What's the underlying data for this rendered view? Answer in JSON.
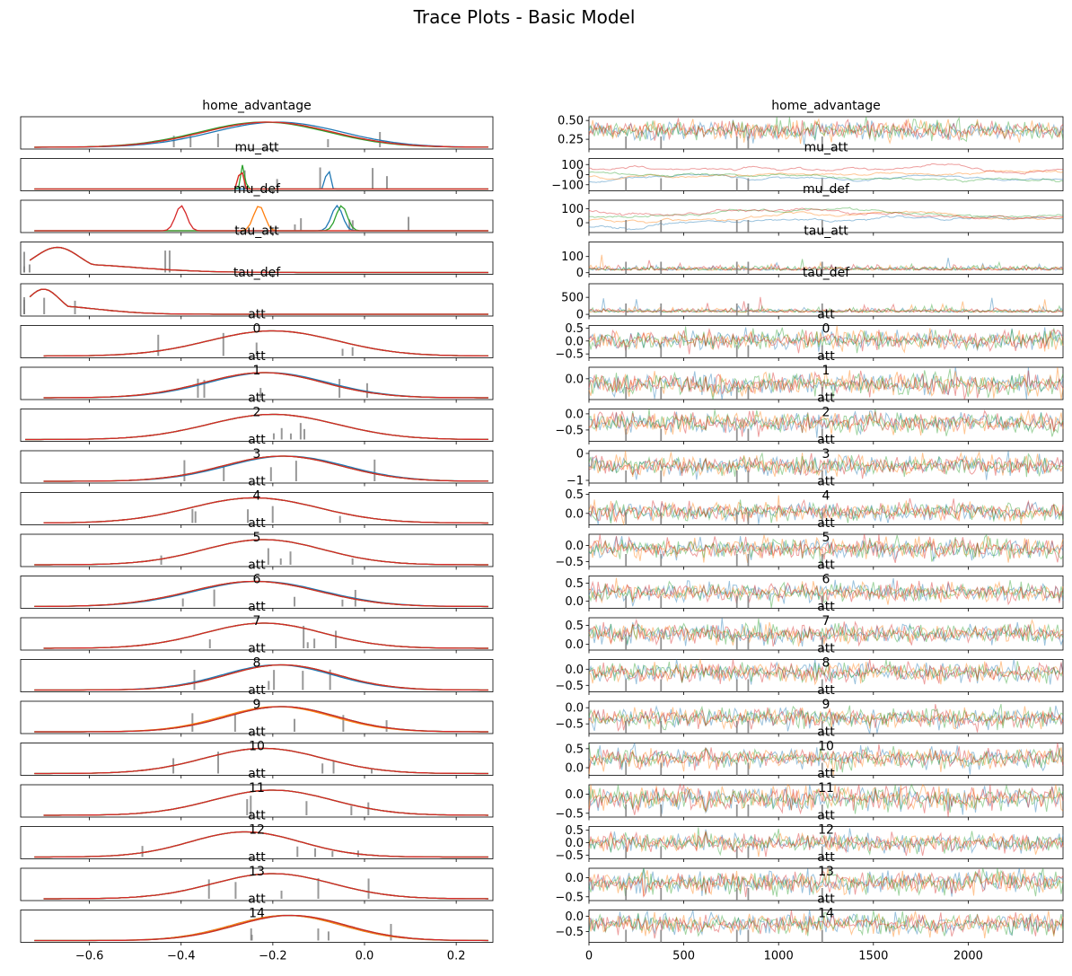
{
  "figure": {
    "title": "Trace Plots - Basic Model"
  },
  "colors": {
    "chain_0": "#1f77b4",
    "chain_1": "#ff7f0e",
    "chain_2": "#2ca02c",
    "chain_3": "#d62728",
    "divergence": "#7f7f7f"
  },
  "chart_data": {
    "type": "line",
    "layout": "rows of paired panels: kde density (left) and trace (right)",
    "chains": 4,
    "left_x_axis": {
      "ticks": [
        -0.6,
        -0.4,
        -0.2,
        0.0,
        0.2
      ],
      "tick_labels": [
        "−0.6",
        "−0.4",
        "−0.2",
        "0.0",
        "0.2"
      ],
      "xlim": [
        -0.75,
        0.28
      ]
    },
    "right_x_axis": {
      "ticks": [
        0,
        500,
        1000,
        1500,
        2000
      ],
      "tick_labels": [
        "0",
        "500",
        "1000",
        "1500",
        "2000"
      ],
      "xlim": [
        0,
        2500
      ]
    },
    "divergence_draws": [
      195,
      380,
      780,
      840,
      1230
    ],
    "panels": [
      {
        "name": "home_advantage",
        "index": "",
        "ylim": [
          0.12,
          0.55
        ],
        "y_ticks": [
          0.25,
          0.5
        ],
        "y_tick_labels": [
          "0.25",
          "0.50"
        ],
        "kde_mean": [
          -0.19,
          -0.21,
          -0.22,
          -0.21
        ],
        "kde_sd": 0.14,
        "kde_range": [
          -0.72,
          0.27
        ],
        "trace_center": 0.37,
        "trace_sd": 0.06,
        "trace_kind": "noise"
      },
      {
        "name": "mu_att",
        "index": "",
        "ylim": [
          -160,
          160
        ],
        "y_ticks": [
          -100,
          0,
          100
        ],
        "y_tick_labels": [
          "−100",
          "0",
          "100"
        ],
        "kde_mean": [
          -0.08,
          -0.27,
          -0.265,
          -0.27
        ],
        "kde_sd": 0.004,
        "kde_range": [
          -0.72,
          0.27
        ],
        "trace_center": 0,
        "trace_sd": 55,
        "trace_kind": "walk"
      },
      {
        "name": "mu_def",
        "index": "",
        "ylim": [
          -70,
          160
        ],
        "y_ticks": [
          0,
          100
        ],
        "y_tick_labels": [
          "0",
          "100"
        ],
        "kde_mean": [
          -0.06,
          -0.23,
          -0.05,
          -0.4
        ],
        "kde_sd": 0.012,
        "kde_range": [
          -0.72,
          0.27
        ],
        "trace_center": 30,
        "trace_sd": 45,
        "trace_kind": "walk"
      },
      {
        "name": "tau_att",
        "index": "",
        "ylim": [
          -10,
          190
        ],
        "y_ticks": [
          0,
          100
        ],
        "y_tick_labels": [
          "0",
          "100"
        ],
        "kde_mean": [
          -0.67,
          -0.67,
          -0.67,
          -0.67
        ],
        "kde_sd": 0.05,
        "kde_range": [
          -0.73,
          0.27
        ],
        "trace_center": 15,
        "trace_sd": 12,
        "trace_kind": "spiky"
      },
      {
        "name": "tau_def",
        "index": "",
        "ylim": [
          -50,
          900
        ],
        "y_ticks": [
          0,
          500
        ],
        "y_tick_labels": [
          "0",
          "500"
        ],
        "kde_mean": [
          -0.7,
          -0.7,
          -0.7,
          -0.7
        ],
        "kde_sd": 0.035,
        "kde_range": [
          -0.73,
          0.27
        ],
        "trace_center": 60,
        "trace_sd": 50,
        "trace_kind": "spiky"
      },
      {
        "name": "att",
        "index": "0",
        "ylim": [
          -0.65,
          0.6
        ],
        "y_ticks": [
          -0.5,
          0.0,
          0.5
        ],
        "y_tick_labels": [
          "−0.5",
          "0.0",
          "0.5"
        ],
        "kde_mean": [
          -0.2,
          -0.2,
          -0.2,
          -0.2
        ],
        "kde_sd": 0.14,
        "kde_range": [
          -0.7,
          0.27
        ],
        "trace_center": 0.02,
        "trace_sd": 0.18,
        "trace_kind": "noise"
      },
      {
        "name": "att",
        "index": "1",
        "ylim": [
          -0.45,
          0.25
        ],
        "y_ticks": [
          0.0
        ],
        "y_tick_labels": [
          "0.0"
        ],
        "kde_mean": [
          -0.21,
          -0.22,
          -0.22,
          -0.22
        ],
        "kde_sd": 0.13,
        "kde_range": [
          -0.7,
          0.27
        ],
        "trace_center": -0.12,
        "trace_sd": 0.12,
        "trace_kind": "noise"
      },
      {
        "name": "att",
        "index": "2",
        "ylim": [
          -0.85,
          0.15
        ],
        "y_ticks": [
          -0.5,
          0.0
        ],
        "y_tick_labels": [
          "−0.5",
          "0.0"
        ],
        "kde_mean": [
          -0.2,
          -0.2,
          -0.2,
          -0.2
        ],
        "kde_sd": 0.14,
        "kde_range": [
          -0.74,
          0.27
        ],
        "trace_center": -0.27,
        "trace_sd": 0.15,
        "trace_kind": "noise"
      },
      {
        "name": "att",
        "index": "3",
        "ylim": [
          -1.1,
          0.1
        ],
        "y_ticks": [
          -1,
          0
        ],
        "y_tick_labels": [
          "−1",
          "0"
        ],
        "kde_mean": [
          -0.17,
          -0.18,
          -0.18,
          -0.18
        ],
        "kde_sd": 0.13,
        "kde_range": [
          -0.7,
          0.27
        ],
        "trace_center": -0.45,
        "trace_sd": 0.18,
        "trace_kind": "noise"
      },
      {
        "name": "att",
        "index": "4",
        "ylim": [
          -0.3,
          0.55
        ],
        "y_ticks": [
          0.0,
          0.5
        ],
        "y_tick_labels": [
          "0.0",
          "0.5"
        ],
        "kde_mean": [
          -0.24,
          -0.24,
          -0.24,
          -0.24
        ],
        "kde_sd": 0.14,
        "kde_range": [
          -0.7,
          0.27
        ],
        "trace_center": 0.05,
        "trace_sd": 0.12,
        "trace_kind": "noise"
      },
      {
        "name": "att",
        "index": "5",
        "ylim": [
          -0.65,
          0.35
        ],
        "y_ticks": [
          -0.5,
          0.0
        ],
        "y_tick_labels": [
          "−0.5",
          "0.0"
        ],
        "kde_mean": [
          -0.22,
          -0.22,
          -0.22,
          -0.22
        ],
        "kde_sd": 0.13,
        "kde_range": [
          -0.72,
          0.27
        ],
        "trace_center": -0.1,
        "trace_sd": 0.15,
        "trace_kind": "noise"
      },
      {
        "name": "att",
        "index": "6",
        "ylim": [
          -0.2,
          0.7
        ],
        "y_ticks": [
          0.0,
          0.5
        ],
        "y_tick_labels": [
          "0.0",
          "0.5"
        ],
        "kde_mean": [
          -0.23,
          -0.24,
          -0.24,
          -0.24
        ],
        "kde_sd": 0.14,
        "kde_range": [
          -0.72,
          0.27
        ],
        "trace_center": 0.25,
        "trace_sd": 0.13,
        "trace_kind": "noise"
      },
      {
        "name": "att",
        "index": "7",
        "ylim": [
          -0.15,
          0.7
        ],
        "y_ticks": [
          0.0,
          0.5
        ],
        "y_tick_labels": [
          "0.0",
          "0.5"
        ],
        "kde_mean": [
          -0.22,
          -0.22,
          -0.22,
          -0.22
        ],
        "kde_sd": 0.13,
        "kde_range": [
          -0.7,
          0.27
        ],
        "trace_center": 0.28,
        "trace_sd": 0.13,
        "trace_kind": "noise"
      },
      {
        "name": "att",
        "index": "8",
        "ylim": [
          -0.7,
          0.3
        ],
        "y_ticks": [
          -0.5,
          0.0
        ],
        "y_tick_labels": [
          "−0.5",
          "0.0"
        ],
        "kde_mean": [
          -0.19,
          -0.18,
          -0.18,
          -0.18
        ],
        "kde_sd": 0.12,
        "kde_range": [
          -0.72,
          0.27
        ],
        "trace_center": -0.1,
        "trace_sd": 0.15,
        "trace_kind": "noise"
      },
      {
        "name": "att",
        "index": "9",
        "ylim": [
          -0.8,
          0.2
        ],
        "y_ticks": [
          -0.5,
          0.0
        ],
        "y_tick_labels": [
          "−0.5",
          "0.0"
        ],
        "kde_mean": [
          -0.18,
          -0.19,
          -0.18,
          -0.18
        ],
        "kde_sd": 0.12,
        "kde_range": [
          -0.72,
          0.27
        ],
        "trace_center": -0.32,
        "trace_sd": 0.15,
        "trace_kind": "noise"
      },
      {
        "name": "att",
        "index": "10",
        "ylim": [
          -0.2,
          0.65
        ],
        "y_ticks": [
          0.0,
          0.5
        ],
        "y_tick_labels": [
          "0.0",
          "0.5"
        ],
        "kde_mean": [
          -0.22,
          -0.22,
          -0.22,
          -0.22
        ],
        "kde_sd": 0.13,
        "kde_range": [
          -0.72,
          0.27
        ],
        "trace_center": 0.25,
        "trace_sd": 0.13,
        "trace_kind": "noise"
      },
      {
        "name": "att",
        "index": "11",
        "ylim": [
          -0.6,
          0.25
        ],
        "y_ticks": [
          -0.5,
          0.0
        ],
        "y_tick_labels": [
          "−0.5",
          "0.0"
        ],
        "kde_mean": [
          -0.2,
          -0.2,
          -0.2,
          -0.2
        ],
        "kde_sd": 0.13,
        "kde_range": [
          -0.7,
          0.27
        ],
        "trace_center": -0.1,
        "trace_sd": 0.15,
        "trace_kind": "noise"
      },
      {
        "name": "att",
        "index": "12",
        "ylim": [
          -0.65,
          0.65
        ],
        "y_ticks": [
          -0.5,
          0.0,
          0.5
        ],
        "y_tick_labels": [
          "−0.5",
          "0.0",
          "0.5"
        ],
        "kde_mean": [
          -0.26,
          -0.26,
          -0.26,
          -0.26
        ],
        "kde_sd": 0.12,
        "kde_range": [
          -0.72,
          0.27
        ],
        "trace_center": 0.0,
        "trace_sd": 0.18,
        "trace_kind": "noise"
      },
      {
        "name": "att",
        "index": "13",
        "ylim": [
          -0.6,
          0.25
        ],
        "y_ticks": [
          -0.5,
          0.0
        ],
        "y_tick_labels": [
          "−0.5",
          "0.0"
        ],
        "kde_mean": [
          -0.2,
          -0.2,
          -0.2,
          -0.2
        ],
        "kde_sd": 0.13,
        "kde_range": [
          -0.7,
          0.27
        ],
        "trace_center": -0.12,
        "trace_sd": 0.14,
        "trace_kind": "noise"
      },
      {
        "name": "att",
        "index": "14",
        "ylim": [
          -0.85,
          0.2
        ],
        "y_ticks": [
          -0.5,
          0.0
        ],
        "y_tick_labels": [
          "−0.5",
          "0.0"
        ],
        "kde_mean": [
          -0.17,
          -0.17,
          -0.16,
          -0.16
        ],
        "kde_sd": 0.12,
        "kde_range": [
          -0.72,
          0.27
        ],
        "trace_center": -0.25,
        "trace_sd": 0.16,
        "trace_kind": "noise"
      }
    ]
  }
}
